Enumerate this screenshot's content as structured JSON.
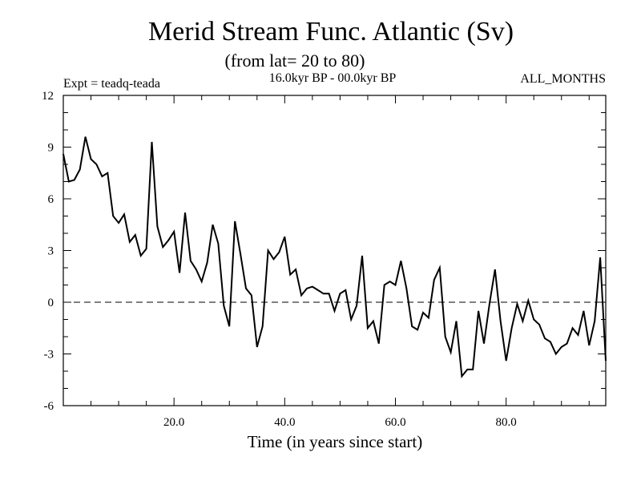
{
  "chart_data": {
    "type": "line",
    "title": "Merid Stream Func. Atlantic (Sv)",
    "subtitle": "(from lat= 20 to 80)",
    "expt_label": "Expt = teadq-teada",
    "period_label": "16.0kyr BP - 00.0kyr BP",
    "months_label": "ALL_MONTHS",
    "xlabel": "Time (in years since start)",
    "ylabel": "",
    "xlim": [
      0,
      98
    ],
    "ylim": [
      -6,
      12
    ],
    "x_ticks": [
      20,
      40,
      60,
      80
    ],
    "x_tick_labels": [
      "20.0",
      "40.0",
      "60.0",
      "80.0"
    ],
    "y_ticks": [
      -6,
      -3,
      0,
      3,
      6,
      9,
      12
    ],
    "y_tick_labels": [
      "-6",
      "-3",
      "0",
      "3",
      "6",
      "9",
      "12"
    ],
    "zero_line": true,
    "series": [
      {
        "name": "teadq-teada",
        "x": [
          0,
          1,
          2,
          3,
          4,
          5,
          6,
          7,
          8,
          9,
          10,
          11,
          12,
          13,
          14,
          15,
          16,
          17,
          18,
          19,
          20,
          21,
          22,
          23,
          24,
          25,
          26,
          27,
          28,
          29,
          30,
          31,
          32,
          33,
          34,
          35,
          36,
          37,
          38,
          39,
          40,
          41,
          42,
          43,
          44,
          45,
          46,
          47,
          48,
          49,
          50,
          51,
          52,
          53,
          54,
          55,
          56,
          57,
          58,
          59,
          60,
          61,
          62,
          63,
          64,
          65,
          66,
          67,
          68,
          69,
          70,
          71,
          72,
          73,
          74,
          75,
          76,
          77,
          78,
          79,
          80,
          81,
          82,
          83,
          84,
          85,
          86,
          87,
          88,
          89,
          90,
          91,
          92,
          93,
          94,
          95,
          96,
          97,
          98
        ],
        "values": [
          8.6,
          7.0,
          7.1,
          7.7,
          9.6,
          8.3,
          8.0,
          7.3,
          7.5,
          5.0,
          4.6,
          5.1,
          3.5,
          3.9,
          2.7,
          3.1,
          9.3,
          4.4,
          3.2,
          3.6,
          4.1,
          1.7,
          5.2,
          2.4,
          1.9,
          1.2,
          2.3,
          4.5,
          3.4,
          -0.2,
          -1.4,
          4.7,
          2.8,
          0.8,
          0.4,
          -2.6,
          -1.4,
          3.0,
          2.5,
          2.9,
          3.8,
          1.6,
          1.9,
          0.4,
          0.8,
          0.9,
          0.7,
          0.5,
          0.5,
          -0.5,
          0.5,
          0.7,
          -1.0,
          -0.2,
          2.7,
          -1.5,
          -1.1,
          -2.4,
          1.0,
          1.2,
          1.0,
          2.4,
          0.8,
          -1.4,
          -1.6,
          -0.6,
          -0.9,
          1.3,
          2.0,
          -2.0,
          -2.9,
          -1.1,
          -4.3,
          -3.9,
          -3.9,
          -0.5,
          -2.4,
          -0.1,
          1.9,
          -1.1,
          -3.4,
          -1.5,
          -0.1,
          -1.1,
          0.1,
          -1.0,
          -1.3,
          -2.1,
          -2.3,
          -3.0,
          -2.6,
          -2.4,
          -1.5,
          -1.9,
          -0.5,
          -2.5,
          -1.1,
          2.6,
          -3.4
        ]
      }
    ]
  }
}
